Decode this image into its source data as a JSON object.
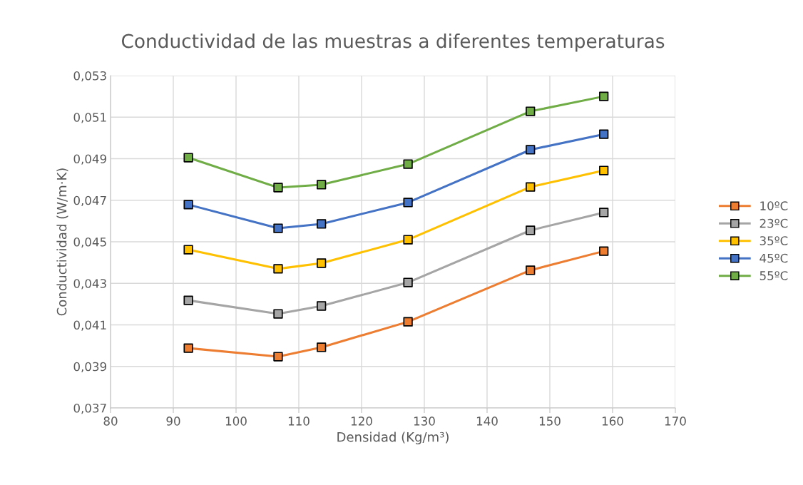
{
  "chart_data": {
    "type": "line",
    "title": "Conductividad de las muestras a diferentes temperaturas",
    "xlabel": "Densidad (Kg/m³)",
    "ylabel": "Conductividad (W/m·K)",
    "x": [
      92.4,
      106.7,
      113.6,
      127.4,
      146.9,
      158.6
    ],
    "series": [
      {
        "name": "10ºC",
        "color": "#ed7d31",
        "values": [
          0.03988,
          0.03947,
          0.03992,
          0.04115,
          0.04363,
          0.04455
        ]
      },
      {
        "name": "23ºC",
        "color": "#a5a5a5",
        "values": [
          0.04218,
          0.04153,
          0.04191,
          0.04304,
          0.04555,
          0.04641
        ]
      },
      {
        "name": "35ºC",
        "color": "#ffc000",
        "values": [
          0.04462,
          0.0437,
          0.04397,
          0.0451,
          0.04764,
          0.04843
        ]
      },
      {
        "name": "45ºC",
        "color": "#4472c4",
        "values": [
          0.04679,
          0.04565,
          0.04586,
          0.04689,
          0.04943,
          0.05018
        ]
      },
      {
        "name": "55ºC",
        "color": "#70ad47",
        "values": [
          0.04905,
          0.04761,
          0.04775,
          0.04874,
          0.05128,
          0.052
        ]
      }
    ],
    "xlim": [
      80,
      170
    ],
    "xticks": [
      80,
      90,
      100,
      110,
      120,
      130,
      140,
      150,
      160,
      170
    ],
    "ylim": [
      0.037,
      0.053
    ],
    "yticks": [
      {
        "value": 0.037,
        "label": "0,037"
      },
      {
        "value": 0.039,
        "label": "0,039"
      },
      {
        "value": 0.041,
        "label": "0,041"
      },
      {
        "value": 0.043,
        "label": "0,043"
      },
      {
        "value": 0.045,
        "label": "0,045"
      },
      {
        "value": 0.047,
        "label": "0,047"
      },
      {
        "value": 0.049,
        "label": "0,049"
      },
      {
        "value": 0.051,
        "label": "0,051"
      },
      {
        "value": 0.053,
        "label": "0,053"
      }
    ],
    "grid": true,
    "legend": "right",
    "marker": "square",
    "line_style": "solid"
  }
}
